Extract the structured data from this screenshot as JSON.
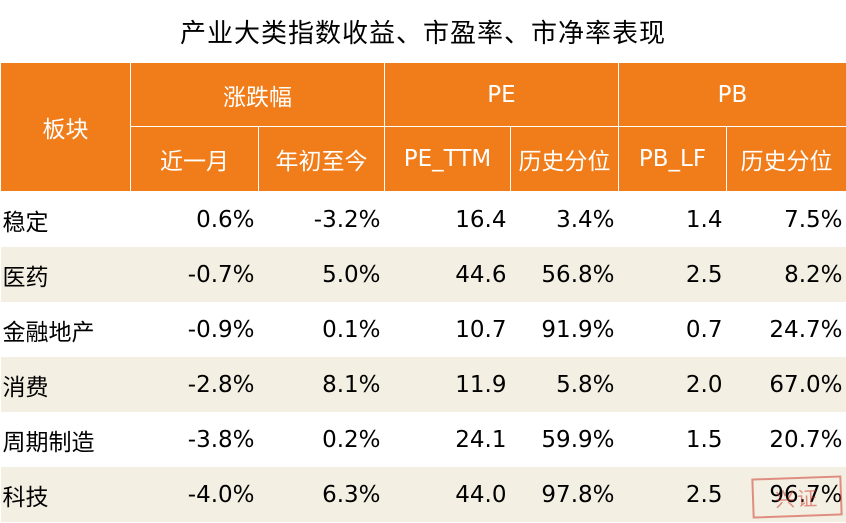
{
  "title": "产业大类指数收益、市盈率、市净率表现",
  "header": {
    "sector": "板块",
    "groups": [
      "涨跌幅",
      "PE",
      "PB"
    ],
    "columns": [
      "近一月",
      "年初至今",
      "PE_TTM",
      "历史分位",
      "PB_LF",
      "历史分位"
    ]
  },
  "rows": [
    {
      "name": "稳定",
      "m1": "0.6%",
      "ytd": "-3.2%",
      "pe": "16.4",
      "pe_pct": "3.4%",
      "pb": "1.4",
      "pb_pct": "7.5%"
    },
    {
      "name": "医药",
      "m1": "-0.7%",
      "ytd": "5.0%",
      "pe": "44.6",
      "pe_pct": "56.8%",
      "pb": "2.5",
      "pb_pct": "8.2%"
    },
    {
      "name": "金融地产",
      "m1": "-0.9%",
      "ytd": "0.1%",
      "pe": "10.7",
      "pe_pct": "91.9%",
      "pb": "0.7",
      "pb_pct": "24.7%"
    },
    {
      "name": "消费",
      "m1": "-2.8%",
      "ytd": "8.1%",
      "pe": "11.9",
      "pe_pct": "5.8%",
      "pb": "2.0",
      "pb_pct": "67.0%"
    },
    {
      "name": "周期制造",
      "m1": "-3.8%",
      "ytd": "0.2%",
      "pe": "24.1",
      "pe_pct": "59.9%",
      "pb": "1.5",
      "pb_pct": "20.7%"
    },
    {
      "name": "科技",
      "m1": "-4.0%",
      "ytd": "6.3%",
      "pe": "44.0",
      "pe_pct": "97.8%",
      "pb": "2.5",
      "pb_pct": "96.7%"
    }
  ],
  "watermark": "兴证",
  "colors": {
    "header": "#f07c1a",
    "stripe": "#f3efe2",
    "watermark": "#cd3c32"
  }
}
